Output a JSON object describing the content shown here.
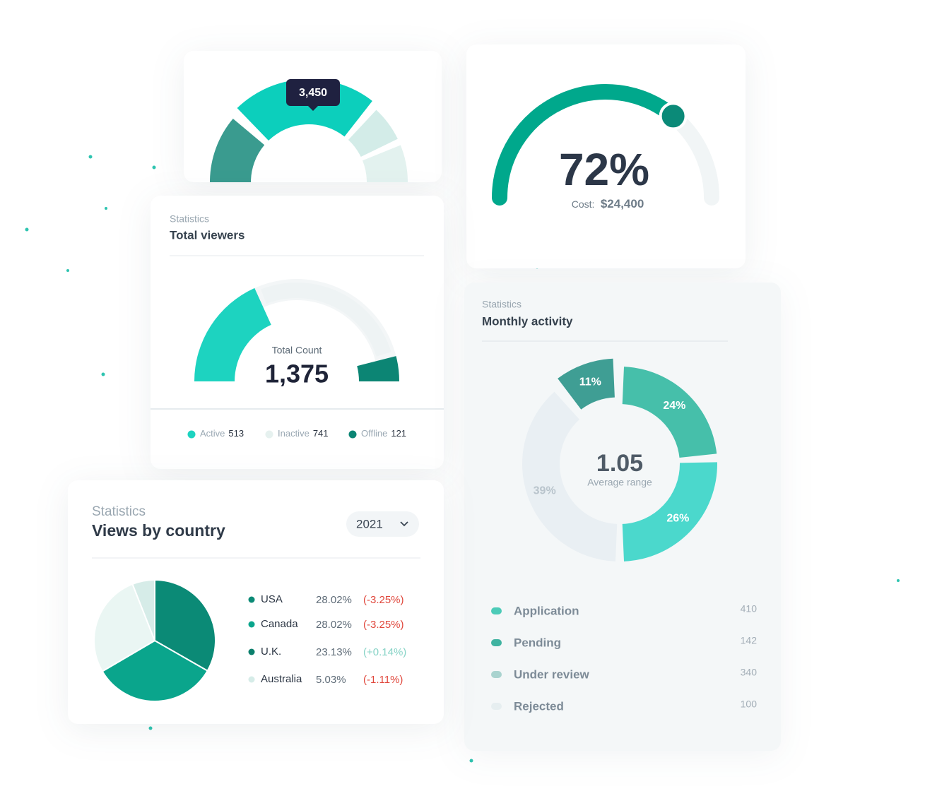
{
  "cards": {
    "sales_gauge": {
      "tooltip": "3,450"
    },
    "cost_gauge": {
      "value": 72,
      "value_label": "72%",
      "cost_label": "Cost:",
      "cost": "$24,400",
      "color": "#00a88c"
    },
    "total_viewers": {
      "subtitle": "Statistics",
      "title": "Total viewers",
      "center_label": "Total Count",
      "total": "1,375",
      "legend": [
        {
          "name": "Active",
          "value": 513,
          "color": "#1dd3c0"
        },
        {
          "name": "Inactive",
          "value": 741,
          "color": "#eef3f4"
        },
        {
          "name": "Offline",
          "value": 121,
          "color": "#0c8574"
        }
      ]
    },
    "monthly_activity": {
      "subtitle": "Statistics",
      "title": "Monthly activity",
      "center_value": "1.05",
      "center_label": "Average range",
      "segments": [
        {
          "value": 24,
          "label": "24%",
          "color": "#46bfaa"
        },
        {
          "value": 26,
          "label": "26%",
          "color": "#4bd8cc"
        },
        {
          "value": 39,
          "label": "39%",
          "color": "#e9eff3"
        },
        {
          "value": 11,
          "label": "11%",
          "color": "#3f9e94"
        }
      ],
      "legend": [
        {
          "name": "Application",
          "count": 410,
          "color": "#4ccbb8"
        },
        {
          "name": "Pending",
          "count": 142,
          "color": "#3fb3a1"
        },
        {
          "name": "Under review",
          "count": 340,
          "color": "#a9d3cf"
        },
        {
          "name": "Rejected",
          "count": 100,
          "color": "#e6eef0"
        }
      ]
    },
    "views_by_country": {
      "subtitle": "Statistics",
      "title": "Views by country",
      "year": "2021",
      "rows": [
        {
          "country": "USA",
          "share": 28.02,
          "share_label": "28.02%",
          "change": "(-3.25%)",
          "color": "#0b8a76",
          "change_color": "#e0473c"
        },
        {
          "country": "Canada",
          "share": 28.02,
          "share_label": "28.02%",
          "change": "(-3.25%)",
          "color": "#0aa58c",
          "change_color": "#e0473c"
        },
        {
          "country": "U.K.",
          "share": 23.13,
          "share_label": "23.13%",
          "change": "(+0.14%)",
          "color": "#eaf6f3",
          "change_color": "#86d3c6"
        },
        {
          "country": "Australia",
          "share": 5.03,
          "share_label": "5.03%",
          "change": "(-1.11%)",
          "color": "#d6ece8",
          "change_color": "#e0473c"
        }
      ]
    }
  }
}
